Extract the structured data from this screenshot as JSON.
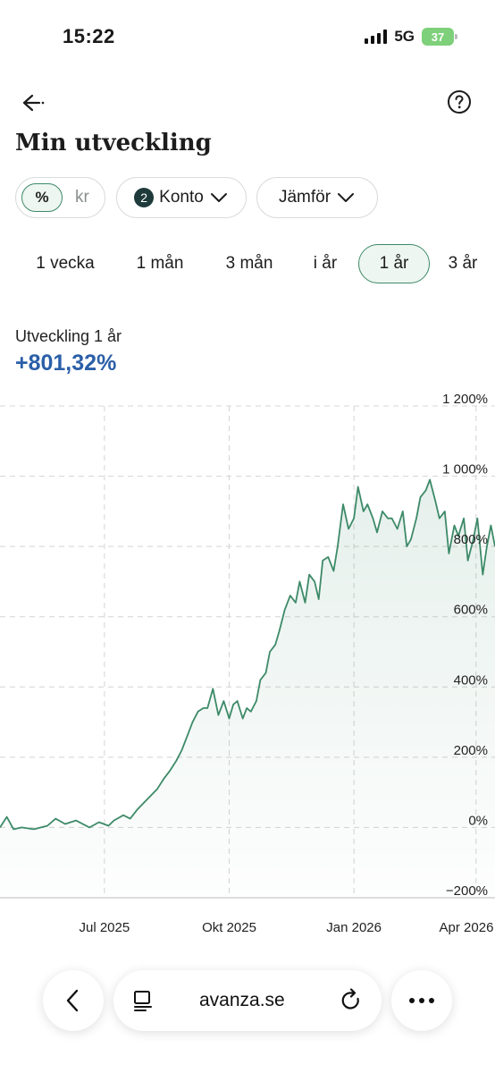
{
  "status_bar": {
    "time": "15:22",
    "network": "5G",
    "battery": "37"
  },
  "header": {
    "title": "Min utveckling"
  },
  "filters": {
    "unit_selected": "%",
    "unit_other": "kr",
    "konto_count": "2",
    "konto_label": "Konto",
    "compare_label": "Jämför"
  },
  "periods": [
    {
      "label": "1 vecka",
      "active": false
    },
    {
      "label": "1 mån",
      "active": false
    },
    {
      "label": "3 mån",
      "active": false
    },
    {
      "label": "i år",
      "active": false
    },
    {
      "label": "1 år",
      "active": true
    },
    {
      "label": "3 år",
      "active": false
    }
  ],
  "performance": {
    "label": "Utveckling 1 år",
    "value": "+801,32%"
  },
  "colors": {
    "line": "#3d8a68",
    "accent_blue": "#2b5fa8",
    "grid": "#d4d4d4"
  },
  "chart_data": {
    "type": "line",
    "title": "",
    "xlabel": "",
    "ylabel": "",
    "y_unit": "%",
    "y_ticks": [
      {
        "value": 1200,
        "label": "1 200%"
      },
      {
        "value": 1000,
        "label": "1 000%"
      },
      {
        "value": 800,
        "label": "800%"
      },
      {
        "value": 600,
        "label": "600%"
      },
      {
        "value": 400,
        "label": "400%"
      },
      {
        "value": 200,
        "label": "200%"
      },
      {
        "value": 0,
        "label": "0%"
      },
      {
        "value": -200,
        "label": "−200%"
      }
    ],
    "ylim": [
      -200,
      1200
    ],
    "x_ticks": [
      {
        "value": "2025-07-01",
        "label": "Jul 2025"
      },
      {
        "value": "2025-10-01",
        "label": "Okt 2025"
      },
      {
        "value": "2026-01-01",
        "label": "Jan 2026"
      },
      {
        "value": "2026-04-01",
        "label": "Apr 2026"
      }
    ],
    "xlim": [
      "2025-04-15",
      "2026-04-15"
    ],
    "grid": true,
    "area_fill": true,
    "series": [
      {
        "x": [
          "2025-04-15",
          "2025-04-20",
          "2025-04-25",
          "2025-05-01",
          "2025-05-10",
          "2025-05-20",
          "2025-05-26",
          "2025-06-02",
          "2025-06-10",
          "2025-06-20",
          "2025-06-27",
          "2025-07-04",
          "2025-07-08",
          "2025-07-15",
          "2025-07-20",
          "2025-07-25",
          "2025-07-30",
          "2025-08-04",
          "2025-08-09",
          "2025-08-14",
          "2025-08-18",
          "2025-08-23",
          "2025-08-27",
          "2025-08-31",
          "2025-09-04",
          "2025-09-08",
          "2025-09-12",
          "2025-09-15",
          "2025-09-19",
          "2025-09-23",
          "2025-09-27",
          "2025-10-01",
          "2025-10-04",
          "2025-10-07",
          "2025-10-11",
          "2025-10-14",
          "2025-10-17",
          "2025-10-21",
          "2025-10-24",
          "2025-10-28",
          "2025-10-31",
          "2025-11-04",
          "2025-11-07",
          "2025-11-11",
          "2025-11-15",
          "2025-11-19",
          "2025-11-22",
          "2025-11-26",
          "2025-11-29",
          "2025-12-03",
          "2025-12-06",
          "2025-12-09",
          "2025-12-13",
          "2025-12-17",
          "2025-12-20",
          "2025-12-24",
          "2025-12-28",
          "2026-01-01",
          "2026-01-04",
          "2026-01-08",
          "2026-01-11",
          "2026-01-15",
          "2026-01-18",
          "2026-01-22",
          "2026-01-26",
          "2026-01-29",
          "2026-02-02",
          "2026-02-06",
          "2026-02-09",
          "2026-02-12",
          "2026-02-16",
          "2026-02-19",
          "2026-02-23",
          "2026-02-26",
          "2026-03-02",
          "2026-03-05",
          "2026-03-09",
          "2026-03-12",
          "2026-03-16",
          "2026-03-19",
          "2026-03-23",
          "2026-03-26",
          "2026-03-30",
          "2026-04-02",
          "2026-04-06",
          "2026-04-09",
          "2026-04-12",
          "2026-04-15"
        ],
        "values": [
          0,
          30,
          -5,
          0,
          -5,
          5,
          25,
          10,
          20,
          0,
          15,
          5,
          20,
          35,
          25,
          50,
          70,
          90,
          110,
          140,
          160,
          190,
          220,
          260,
          300,
          330,
          340,
          340,
          395,
          320,
          360,
          310,
          350,
          360,
          310,
          340,
          330,
          360,
          420,
          440,
          500,
          520,
          560,
          620,
          660,
          640,
          700,
          640,
          720,
          700,
          650,
          760,
          770,
          730,
          800,
          920,
          850,
          880,
          970,
          900,
          920,
          880,
          840,
          900,
          880,
          880,
          850,
          900,
          800,
          820,
          880,
          940,
          960,
          990,
          930,
          880,
          900,
          780,
          860,
          830,
          880,
          760,
          820,
          880,
          720,
          800,
          860,
          800
        ]
      }
    ]
  },
  "browser": {
    "url": "avanza.se"
  }
}
